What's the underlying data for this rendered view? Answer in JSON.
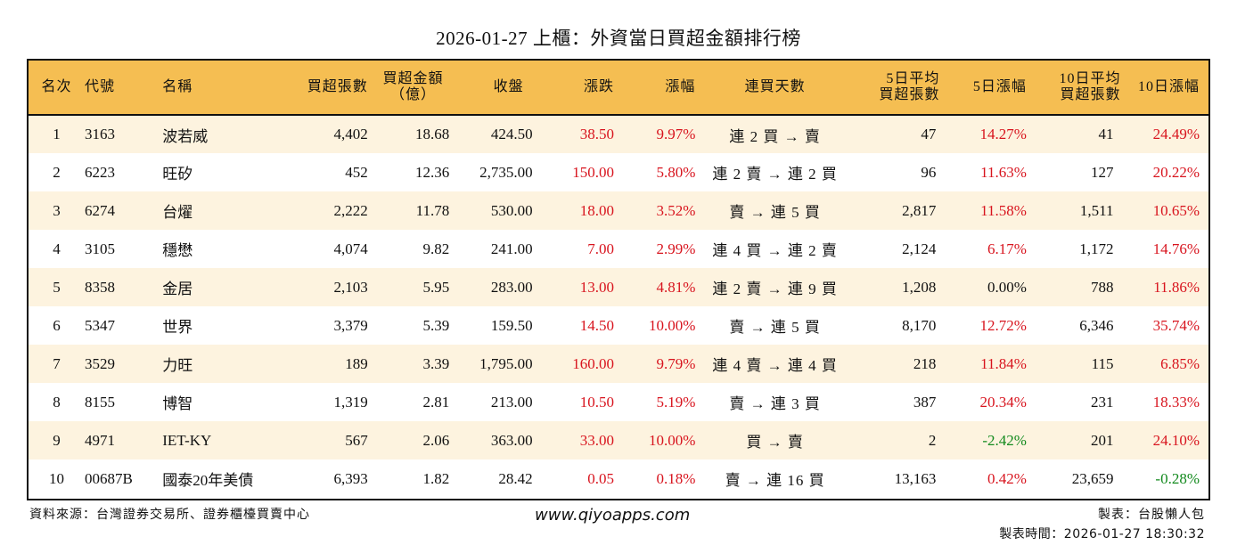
{
  "title": "2026-01-27 上櫃：外資當日買超金額排行榜",
  "headers": {
    "rank": "名次",
    "code": "代號",
    "name": "名稱",
    "buy_shares": "買超張數",
    "buy_amount_l1": "買超金額",
    "buy_amount_l2": "（億）",
    "close": "收盤",
    "change": "漲跌",
    "change_pct": "漲幅",
    "streak": "連買天數",
    "avg5_l1": "5日平均",
    "avg5_l2": "買超張數",
    "pct5": "5日漲幅",
    "avg10_l1": "10日平均",
    "avg10_l2": "買超張數",
    "pct10": "10日漲幅"
  },
  "rows": [
    {
      "rank": "1",
      "code": "3163",
      "name": "波若威",
      "buy_shares": "4,402",
      "buy_amount": "18.68",
      "close": "424.50",
      "change": "38.50",
      "change_pct": "9.97%",
      "streak": "連 2 買 → 賣",
      "avg5": "47",
      "pct5": "14.27%",
      "avg10": "41",
      "pct10": "24.49%"
    },
    {
      "rank": "2",
      "code": "6223",
      "name": "旺矽",
      "buy_shares": "452",
      "buy_amount": "12.36",
      "close": "2,735.00",
      "change": "150.00",
      "change_pct": "5.80%",
      "streak": "連 2 賣 → 連 2 買",
      "avg5": "96",
      "pct5": "11.63%",
      "avg10": "127",
      "pct10": "20.22%"
    },
    {
      "rank": "3",
      "code": "6274",
      "name": "台燿",
      "buy_shares": "2,222",
      "buy_amount": "11.78",
      "close": "530.00",
      "change": "18.00",
      "change_pct": "3.52%",
      "streak": "賣 → 連 5 買",
      "avg5": "2,817",
      "pct5": "11.58%",
      "avg10": "1,511",
      "pct10": "10.65%"
    },
    {
      "rank": "4",
      "code": "3105",
      "name": "穩懋",
      "buy_shares": "4,074",
      "buy_amount": "9.82",
      "close": "241.00",
      "change": "7.00",
      "change_pct": "2.99%",
      "streak": "連 4 買 → 連 2 賣",
      "avg5": "2,124",
      "pct5": "6.17%",
      "avg10": "1,172",
      "pct10": "14.76%"
    },
    {
      "rank": "5",
      "code": "8358",
      "name": "金居",
      "buy_shares": "2,103",
      "buy_amount": "5.95",
      "close": "283.00",
      "change": "13.00",
      "change_pct": "4.81%",
      "streak": "連 2 賣 → 連 9 買",
      "avg5": "1,208",
      "pct5": "0.00%",
      "avg10": "788",
      "pct10": "11.86%"
    },
    {
      "rank": "6",
      "code": "5347",
      "name": "世界",
      "buy_shares": "3,379",
      "buy_amount": "5.39",
      "close": "159.50",
      "change": "14.50",
      "change_pct": "10.00%",
      "streak": "賣 → 連 5 買",
      "avg5": "8,170",
      "pct5": "12.72%",
      "avg10": "6,346",
      "pct10": "35.74%"
    },
    {
      "rank": "7",
      "code": "3529",
      "name": "力旺",
      "buy_shares": "189",
      "buy_amount": "3.39",
      "close": "1,795.00",
      "change": "160.00",
      "change_pct": "9.79%",
      "streak": "連 4 賣 → 連 4 買",
      "avg5": "218",
      "pct5": "11.84%",
      "avg10": "115",
      "pct10": "6.85%"
    },
    {
      "rank": "8",
      "code": "8155",
      "name": "博智",
      "buy_shares": "1,319",
      "buy_amount": "2.81",
      "close": "213.00",
      "change": "10.50",
      "change_pct": "5.19%",
      "streak": "賣 → 連 3 買",
      "avg5": "387",
      "pct5": "20.34%",
      "avg10": "231",
      "pct10": "18.33%"
    },
    {
      "rank": "9",
      "code": "4971",
      "name": "IET-KY",
      "buy_shares": "567",
      "buy_amount": "2.06",
      "close": "363.00",
      "change": "33.00",
      "change_pct": "10.00%",
      "streak": "買 → 賣",
      "avg5": "2",
      "pct5": "-2.42%",
      "avg10": "201",
      "pct10": "24.10%"
    },
    {
      "rank": "10",
      "code": "00687B",
      "name": "國泰20年美債",
      "buy_shares": "6,393",
      "buy_amount": "1.82",
      "close": "28.42",
      "change": "0.05",
      "change_pct": "0.18%",
      "streak": "賣 → 連 16 買",
      "avg5": "13,163",
      "pct5": "0.42%",
      "avg10": "23,659",
      "pct10": "-0.28%"
    }
  ],
  "footer": {
    "source": "資料來源：台灣證券交易所、證券櫃檯買賣中心",
    "website": "www.qiyoapps.com",
    "author": "製表：台股懶人包",
    "made_time": "製表時間：2026-01-27 18:30:32"
  },
  "colors": {
    "header_bg": "#F5BE52",
    "odd_row_bg": "#FDF3DF",
    "even_row_bg": "#FFFFFF",
    "up": "#D8141E",
    "down": "#138A1E",
    "flat": "#111111"
  },
  "chart_data": {
    "type": "table",
    "title": "2026-01-27 上櫃：外資當日買超金額排行榜",
    "columns": [
      "名次",
      "代號",
      "名稱",
      "買超張數",
      "買超金額（億）",
      "收盤",
      "漲跌",
      "漲幅",
      "連買天數",
      "5日平均買超張數",
      "5日漲幅",
      "10日平均買超張數",
      "10日漲幅"
    ],
    "rows": [
      [
        1,
        "3163",
        "波若威",
        4402,
        18.68,
        424.5,
        38.5,
        9.97,
        "連 2 買 → 賣",
        47,
        14.27,
        41,
        24.49
      ],
      [
        2,
        "6223",
        "旺矽",
        452,
        12.36,
        2735.0,
        150.0,
        5.8,
        "連 2 賣 → 連 2 買",
        96,
        11.63,
        127,
        20.22
      ],
      [
        3,
        "6274",
        "台燿",
        2222,
        11.78,
        530.0,
        18.0,
        3.52,
        "賣 → 連 5 買",
        2817,
        11.58,
        1511,
        10.65
      ],
      [
        4,
        "3105",
        "穩懋",
        4074,
        9.82,
        241.0,
        7.0,
        2.99,
        "連 4 買 → 連 2 賣",
        2124,
        6.17,
        1172,
        14.76
      ],
      [
        5,
        "8358",
        "金居",
        2103,
        5.95,
        283.0,
        13.0,
        4.81,
        "連 2 賣 → 連 9 買",
        1208,
        0.0,
        788,
        11.86
      ],
      [
        6,
        "5347",
        "世界",
        3379,
        5.39,
        159.5,
        14.5,
        10.0,
        "賣 → 連 5 買",
        8170,
        12.72,
        6346,
        35.74
      ],
      [
        7,
        "3529",
        "力旺",
        189,
        3.39,
        1795.0,
        160.0,
        9.79,
        "連 4 賣 → 連 4 買",
        218,
        11.84,
        115,
        6.85
      ],
      [
        8,
        "8155",
        "博智",
        1319,
        2.81,
        213.0,
        10.5,
        5.19,
        "賣 → 連 3 買",
        387,
        20.34,
        231,
        18.33
      ],
      [
        9,
        "4971",
        "IET-KY",
        567,
        2.06,
        363.0,
        33.0,
        10.0,
        "買 → 賣",
        2,
        -2.42,
        201,
        24.1
      ],
      [
        10,
        "00687B",
        "國泰20年美債",
        6393,
        1.82,
        28.42,
        0.05,
        0.18,
        "賣 → 連 16 買",
        13163,
        0.42,
        23659,
        -0.28
      ]
    ]
  }
}
